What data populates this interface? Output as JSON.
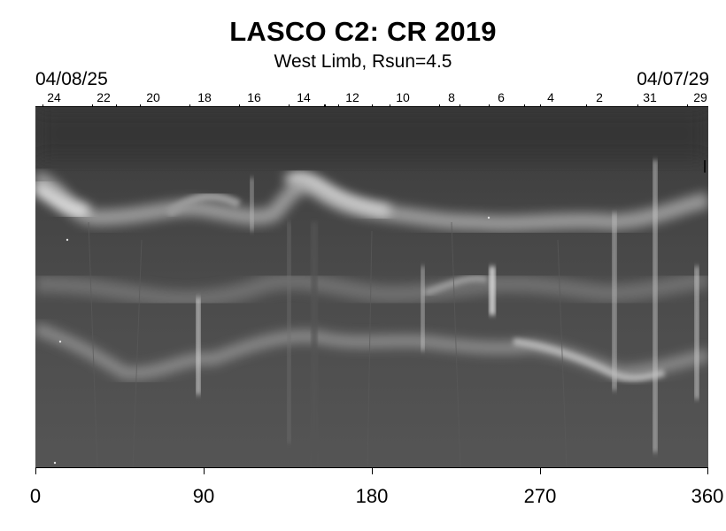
{
  "header": {
    "title": "LASCO C2: CR 2019",
    "subtitle": "West Limb, Rsun=4.5",
    "date_left": "04/08/25",
    "date_right": "04/07/29"
  },
  "top_axis": {
    "labels": [
      "24",
      "22",
      "20",
      "18",
      "16",
      "14",
      "12",
      "10",
      "8",
      "6",
      "4",
      "2",
      "31",
      "29"
    ]
  },
  "bottom_axis": {
    "labels": [
      "0",
      "90",
      "180",
      "270",
      "360"
    ]
  },
  "plot": {
    "description_colors": {
      "background": "#4a4a4a",
      "bright": "#d8d8d8",
      "dark": "#2e2e2e"
    }
  }
}
